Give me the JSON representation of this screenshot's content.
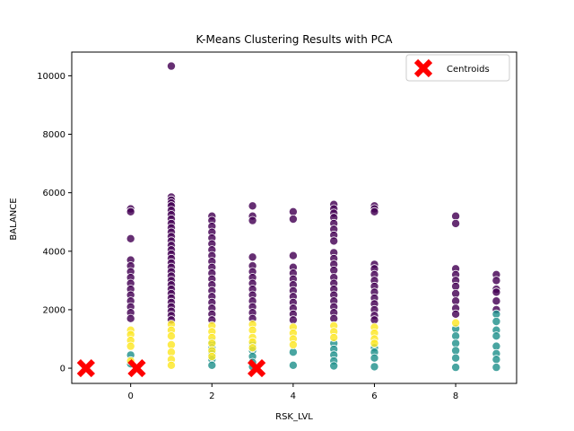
{
  "chart_data": {
    "type": "scatter",
    "title": "K-Means Clustering Results with PCA",
    "xlabel": "RSK_LVL",
    "ylabel": "BALANCE",
    "xlim": [
      -1.45,
      9.5
    ],
    "ylim": [
      -520,
      10810
    ],
    "xticks": [
      0,
      2,
      4,
      6,
      8
    ],
    "yticks": [
      0,
      2000,
      4000,
      6000,
      8000,
      10000
    ],
    "grid": false,
    "legend_position": "top-right",
    "colors": {
      "cluster_0": "#440154",
      "cluster_1": "#21918c",
      "cluster_2": "#fde725",
      "centroid": "#ff0000"
    },
    "series": [
      {
        "cluster": 0,
        "color": "#440154",
        "points": [
          {
            "x": 0,
            "y": 5450
          },
          {
            "x": 0,
            "y": 5350
          },
          {
            "x": 0,
            "y": 4430
          },
          {
            "x": 0,
            "y": 3700
          },
          {
            "x": 0,
            "y": 3500
          },
          {
            "x": 0,
            "y": 3300
          },
          {
            "x": 0,
            "y": 3100
          },
          {
            "x": 0,
            "y": 2900
          },
          {
            "x": 0,
            "y": 2700
          },
          {
            "x": 0,
            "y": 2500
          },
          {
            "x": 0,
            "y": 2300
          },
          {
            "x": 0,
            "y": 2100
          },
          {
            "x": 0,
            "y": 1900
          },
          {
            "x": 0,
            "y": 1700
          },
          {
            "x": 1,
            "y": 10330
          },
          {
            "x": 1,
            "y": 5850
          },
          {
            "x": 1,
            "y": 5750
          },
          {
            "x": 1,
            "y": 5650
          },
          {
            "x": 1,
            "y": 5550
          },
          {
            "x": 1,
            "y": 5400
          },
          {
            "x": 1,
            "y": 5250
          },
          {
            "x": 1,
            "y": 5100
          },
          {
            "x": 1,
            "y": 4950
          },
          {
            "x": 1,
            "y": 4800
          },
          {
            "x": 1,
            "y": 4650
          },
          {
            "x": 1,
            "y": 4500
          },
          {
            "x": 1,
            "y": 4350
          },
          {
            "x": 1,
            "y": 4200
          },
          {
            "x": 1,
            "y": 4050
          },
          {
            "x": 1,
            "y": 3900
          },
          {
            "x": 1,
            "y": 3750
          },
          {
            "x": 1,
            "y": 3600
          },
          {
            "x": 1,
            "y": 3450
          },
          {
            "x": 1,
            "y": 3300
          },
          {
            "x": 1,
            "y": 3150
          },
          {
            "x": 1,
            "y": 3000
          },
          {
            "x": 1,
            "y": 2850
          },
          {
            "x": 1,
            "y": 2700
          },
          {
            "x": 1,
            "y": 2550
          },
          {
            "x": 1,
            "y": 2400
          },
          {
            "x": 1,
            "y": 2250
          },
          {
            "x": 1,
            "y": 2100
          },
          {
            "x": 1,
            "y": 1950
          },
          {
            "x": 1,
            "y": 1800
          },
          {
            "x": 1,
            "y": 1650
          },
          {
            "x": 2,
            "y": 5200
          },
          {
            "x": 2,
            "y": 5050
          },
          {
            "x": 2,
            "y": 4850
          },
          {
            "x": 2,
            "y": 4650
          },
          {
            "x": 2,
            "y": 4450
          },
          {
            "x": 2,
            "y": 4250
          },
          {
            "x": 2,
            "y": 4050
          },
          {
            "x": 2,
            "y": 3850
          },
          {
            "x": 2,
            "y": 3650
          },
          {
            "x": 2,
            "y": 3450
          },
          {
            "x": 2,
            "y": 3250
          },
          {
            "x": 2,
            "y": 3050
          },
          {
            "x": 2,
            "y": 2850
          },
          {
            "x": 2,
            "y": 2650
          },
          {
            "x": 2,
            "y": 2450
          },
          {
            "x": 2,
            "y": 2250
          },
          {
            "x": 2,
            "y": 2050
          },
          {
            "x": 2,
            "y": 1850
          },
          {
            "x": 2,
            "y": 1650
          },
          {
            "x": 3,
            "y": 5550
          },
          {
            "x": 3,
            "y": 5200
          },
          {
            "x": 3,
            "y": 5050
          },
          {
            "x": 3,
            "y": 3800
          },
          {
            "x": 3,
            "y": 3500
          },
          {
            "x": 3,
            "y": 3300
          },
          {
            "x": 3,
            "y": 3100
          },
          {
            "x": 3,
            "y": 2900
          },
          {
            "x": 3,
            "y": 2700
          },
          {
            "x": 3,
            "y": 2500
          },
          {
            "x": 3,
            "y": 2300
          },
          {
            "x": 3,
            "y": 2100
          },
          {
            "x": 3,
            "y": 1900
          },
          {
            "x": 3,
            "y": 1700
          },
          {
            "x": 4,
            "y": 5350
          },
          {
            "x": 4,
            "y": 5100
          },
          {
            "x": 4,
            "y": 3850
          },
          {
            "x": 4,
            "y": 3450
          },
          {
            "x": 4,
            "y": 3250
          },
          {
            "x": 4,
            "y": 3050
          },
          {
            "x": 4,
            "y": 2850
          },
          {
            "x": 4,
            "y": 2650
          },
          {
            "x": 4,
            "y": 2450
          },
          {
            "x": 4,
            "y": 2250
          },
          {
            "x": 4,
            "y": 2050
          },
          {
            "x": 4,
            "y": 1850
          },
          {
            "x": 4,
            "y": 1650
          },
          {
            "x": 5,
            "y": 5600
          },
          {
            "x": 5,
            "y": 5450
          },
          {
            "x": 5,
            "y": 5300
          },
          {
            "x": 5,
            "y": 5150
          },
          {
            "x": 5,
            "y": 4950
          },
          {
            "x": 5,
            "y": 4750
          },
          {
            "x": 5,
            "y": 4550
          },
          {
            "x": 5,
            "y": 4350
          },
          {
            "x": 5,
            "y": 3950
          },
          {
            "x": 5,
            "y": 3750
          },
          {
            "x": 5,
            "y": 3550
          },
          {
            "x": 5,
            "y": 3350
          },
          {
            "x": 5,
            "y": 3100
          },
          {
            "x": 5,
            "y": 2900
          },
          {
            "x": 5,
            "y": 2700
          },
          {
            "x": 5,
            "y": 2500
          },
          {
            "x": 5,
            "y": 2300
          },
          {
            "x": 5,
            "y": 2100
          },
          {
            "x": 5,
            "y": 1900
          },
          {
            "x": 5,
            "y": 1700
          },
          {
            "x": 6,
            "y": 5550
          },
          {
            "x": 6,
            "y": 5450
          },
          {
            "x": 6,
            "y": 5350
          },
          {
            "x": 6,
            "y": 3550
          },
          {
            "x": 6,
            "y": 3400
          },
          {
            "x": 6,
            "y": 3200
          },
          {
            "x": 6,
            "y": 3000
          },
          {
            "x": 6,
            "y": 2800
          },
          {
            "x": 6,
            "y": 2600
          },
          {
            "x": 6,
            "y": 2400
          },
          {
            "x": 6,
            "y": 2200
          },
          {
            "x": 6,
            "y": 2000
          },
          {
            "x": 6,
            "y": 1800
          },
          {
            "x": 6,
            "y": 1650
          },
          {
            "x": 8,
            "y": 5200
          },
          {
            "x": 8,
            "y": 4950
          },
          {
            "x": 8,
            "y": 3400
          },
          {
            "x": 8,
            "y": 3200
          },
          {
            "x": 8,
            "y": 3000
          },
          {
            "x": 8,
            "y": 2800
          },
          {
            "x": 8,
            "y": 2550
          },
          {
            "x": 8,
            "y": 2300
          },
          {
            "x": 8,
            "y": 2050
          },
          {
            "x": 8,
            "y": 1850
          },
          {
            "x": 9,
            "y": 3200
          },
          {
            "x": 9,
            "y": 3000
          },
          {
            "x": 9,
            "y": 2700
          },
          {
            "x": 9,
            "y": 2600
          },
          {
            "x": 9,
            "y": 2300
          },
          {
            "x": 9,
            "y": 2000
          }
        ]
      },
      {
        "cluster": 1,
        "color": "#21918c",
        "points": [
          {
            "x": 0,
            "y": 450
          },
          {
            "x": 0,
            "y": 150
          },
          {
            "x": 2,
            "y": 900
          },
          {
            "x": 2,
            "y": 700
          },
          {
            "x": 2,
            "y": 500
          },
          {
            "x": 2,
            "y": 300
          },
          {
            "x": 2,
            "y": 100
          },
          {
            "x": 3,
            "y": 800
          },
          {
            "x": 3,
            "y": 600
          },
          {
            "x": 3,
            "y": 400
          },
          {
            "x": 3,
            "y": 200
          },
          {
            "x": 3,
            "y": 50
          },
          {
            "x": 4,
            "y": 550
          },
          {
            "x": 4,
            "y": 100
          },
          {
            "x": 5,
            "y": 850
          },
          {
            "x": 5,
            "y": 650
          },
          {
            "x": 5,
            "y": 450
          },
          {
            "x": 5,
            "y": 250
          },
          {
            "x": 5,
            "y": 80
          },
          {
            "x": 6,
            "y": 700
          },
          {
            "x": 6,
            "y": 550
          },
          {
            "x": 6,
            "y": 350
          },
          {
            "x": 6,
            "y": 50
          },
          {
            "x": 8,
            "y": 1350
          },
          {
            "x": 8,
            "y": 1100
          },
          {
            "x": 8,
            "y": 850
          },
          {
            "x": 8,
            "y": 600
          },
          {
            "x": 8,
            "y": 350
          },
          {
            "x": 8,
            "y": 30
          },
          {
            "x": 9,
            "y": 1850
          },
          {
            "x": 9,
            "y": 1600
          },
          {
            "x": 9,
            "y": 1300
          },
          {
            "x": 9,
            "y": 1100
          },
          {
            "x": 9,
            "y": 750
          },
          {
            "x": 9,
            "y": 500
          },
          {
            "x": 9,
            "y": 300
          },
          {
            "x": 9,
            "y": 30
          }
        ]
      },
      {
        "cluster": 2,
        "color": "#fde725",
        "points": [
          {
            "x": 0,
            "y": 1300
          },
          {
            "x": 0,
            "y": 1150
          },
          {
            "x": 0,
            "y": 950
          },
          {
            "x": 0,
            "y": 750
          },
          {
            "x": 0,
            "y": 250
          },
          {
            "x": 1,
            "y": 1500
          },
          {
            "x": 1,
            "y": 1300
          },
          {
            "x": 1,
            "y": 1100
          },
          {
            "x": 1,
            "y": 800
          },
          {
            "x": 1,
            "y": 550
          },
          {
            "x": 1,
            "y": 300
          },
          {
            "x": 1,
            "y": 100
          },
          {
            "x": 2,
            "y": 1450
          },
          {
            "x": 2,
            "y": 1250
          },
          {
            "x": 2,
            "y": 1050
          },
          {
            "x": 2,
            "y": 850
          },
          {
            "x": 2,
            "y": 600
          },
          {
            "x": 2,
            "y": 400
          },
          {
            "x": 3,
            "y": 1500
          },
          {
            "x": 3,
            "y": 1300
          },
          {
            "x": 3,
            "y": 1050
          },
          {
            "x": 3,
            "y": 900
          },
          {
            "x": 3,
            "y": 700
          },
          {
            "x": 4,
            "y": 1400
          },
          {
            "x": 4,
            "y": 1200
          },
          {
            "x": 4,
            "y": 1000
          },
          {
            "x": 4,
            "y": 800
          },
          {
            "x": 5,
            "y": 1450
          },
          {
            "x": 5,
            "y": 1250
          },
          {
            "x": 5,
            "y": 1050
          },
          {
            "x": 6,
            "y": 1400
          },
          {
            "x": 6,
            "y": 1200
          },
          {
            "x": 6,
            "y": 1000
          },
          {
            "x": 6,
            "y": 850
          },
          {
            "x": 8,
            "y": 1550
          }
        ]
      }
    ],
    "centroids": {
      "name": "Centroids",
      "color": "#ff0000",
      "points": [
        {
          "x": -1.1,
          "y": 0
        },
        {
          "x": 0.15,
          "y": 0
        },
        {
          "x": 3.1,
          "y": 0
        }
      ]
    }
  }
}
